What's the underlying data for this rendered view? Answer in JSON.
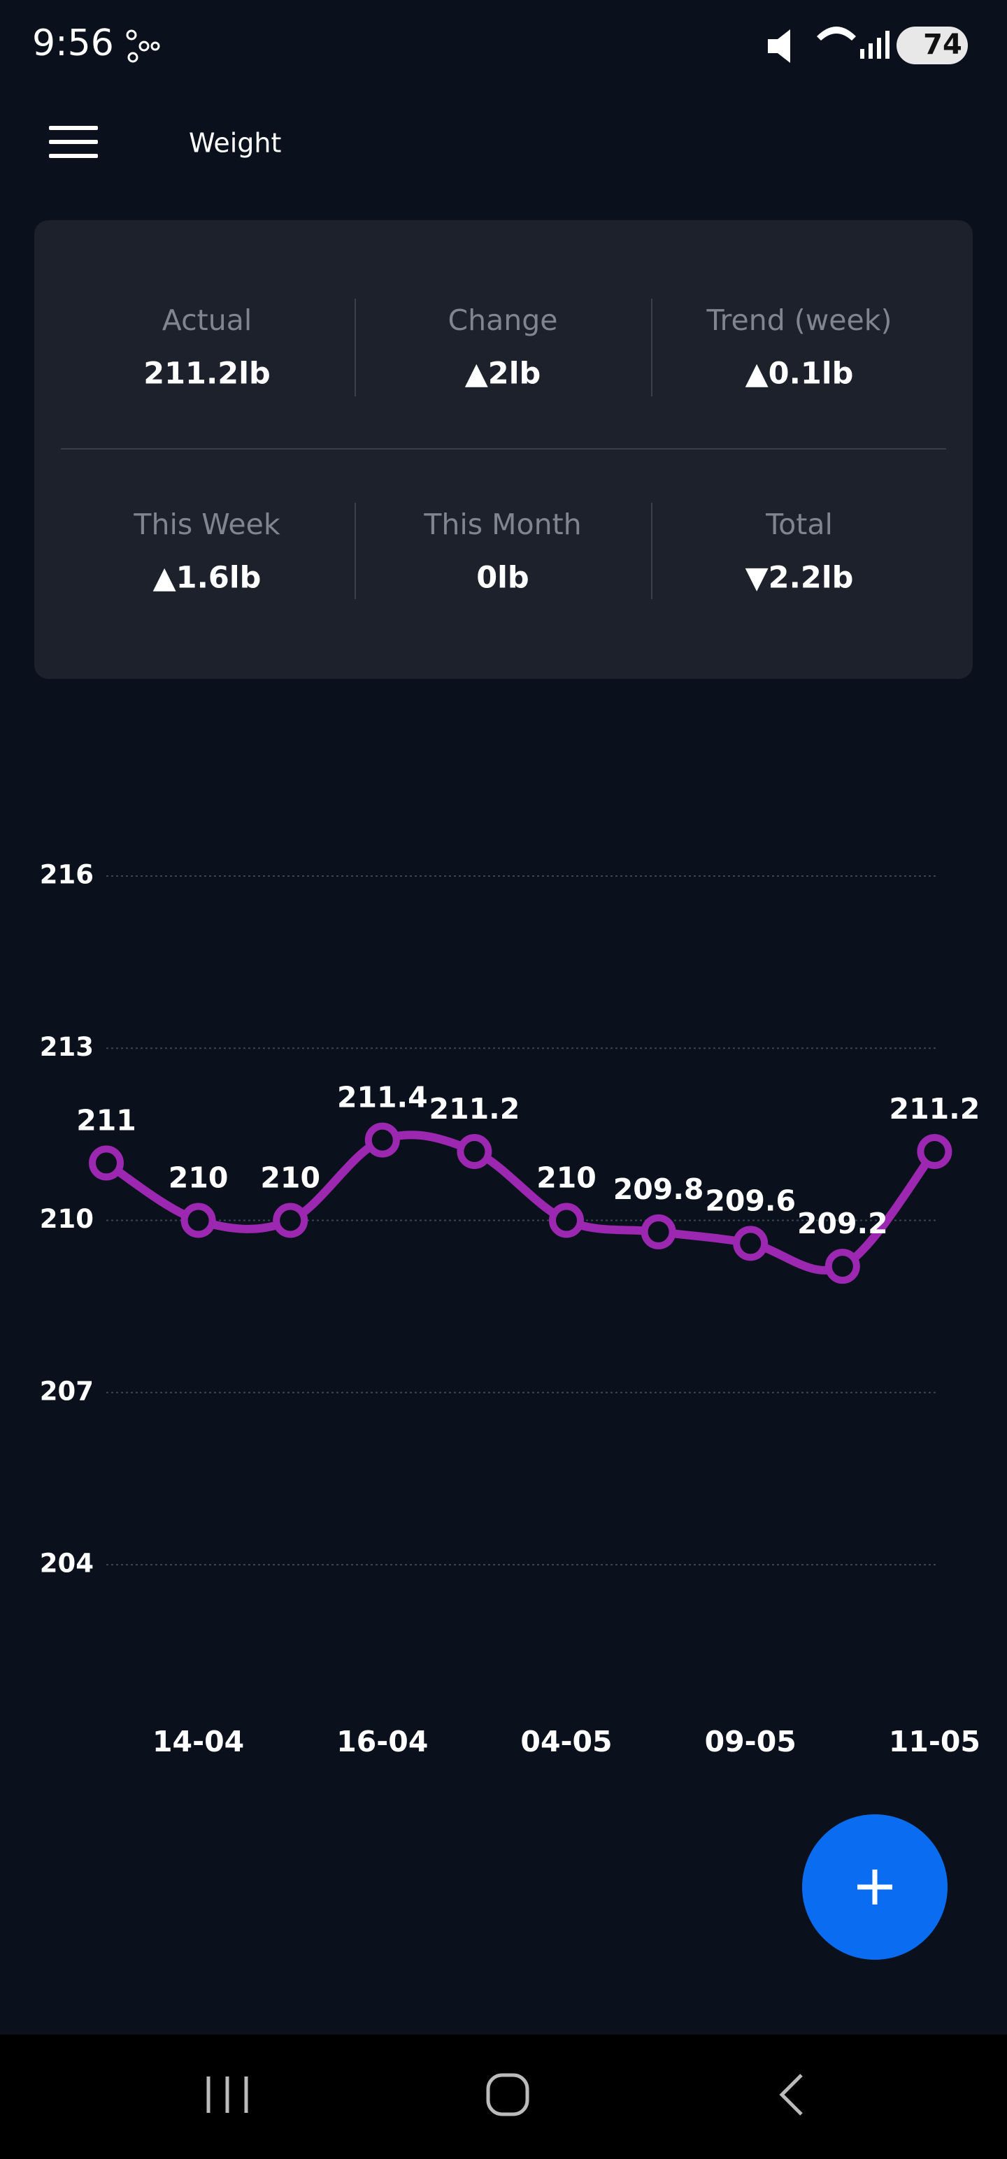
{
  "status_bar": {
    "time": "9:56",
    "battery": "74"
  },
  "header": {
    "title": "Weight"
  },
  "stats": [
    [
      {
        "label": "Actual",
        "value": "211.2lb"
      },
      {
        "label": "Change",
        "value": "▲2lb"
      },
      {
        "label": "Trend (week)",
        "value": "▲0.1lb"
      }
    ],
    [
      {
        "label": "This Week",
        "value": "▲1.6lb"
      },
      {
        "label": "This Month",
        "value": "0lb"
      },
      {
        "label": "Total",
        "value": "▼2.2lb"
      }
    ]
  ],
  "chart_data": {
    "type": "line",
    "categories": [
      null,
      "14-04",
      null,
      "16-04",
      null,
      "04-05",
      null,
      "09-05",
      null,
      "11-05"
    ],
    "values": [
      211,
      210,
      210,
      211.4,
      211.2,
      210,
      209.8,
      209.6,
      209.2,
      211.2
    ],
    "color": "#9c27b0",
    "ylim": [
      204,
      216
    ],
    "yticks": [
      204,
      207,
      210,
      213,
      216
    ],
    "grid": true,
    "data_labels": true
  }
}
